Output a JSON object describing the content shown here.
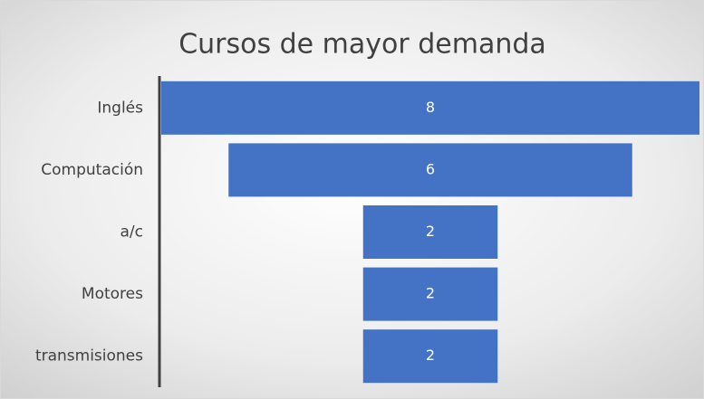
{
  "chart_data": {
    "type": "funnel",
    "title": "Cursos de mayor demanda",
    "categories": [
      "Inglés",
      "Computación",
      "a/c",
      "Motores",
      "transmisiones"
    ],
    "values": [
      8,
      6,
      2,
      2,
      2
    ],
    "color": "#4472c4"
  }
}
